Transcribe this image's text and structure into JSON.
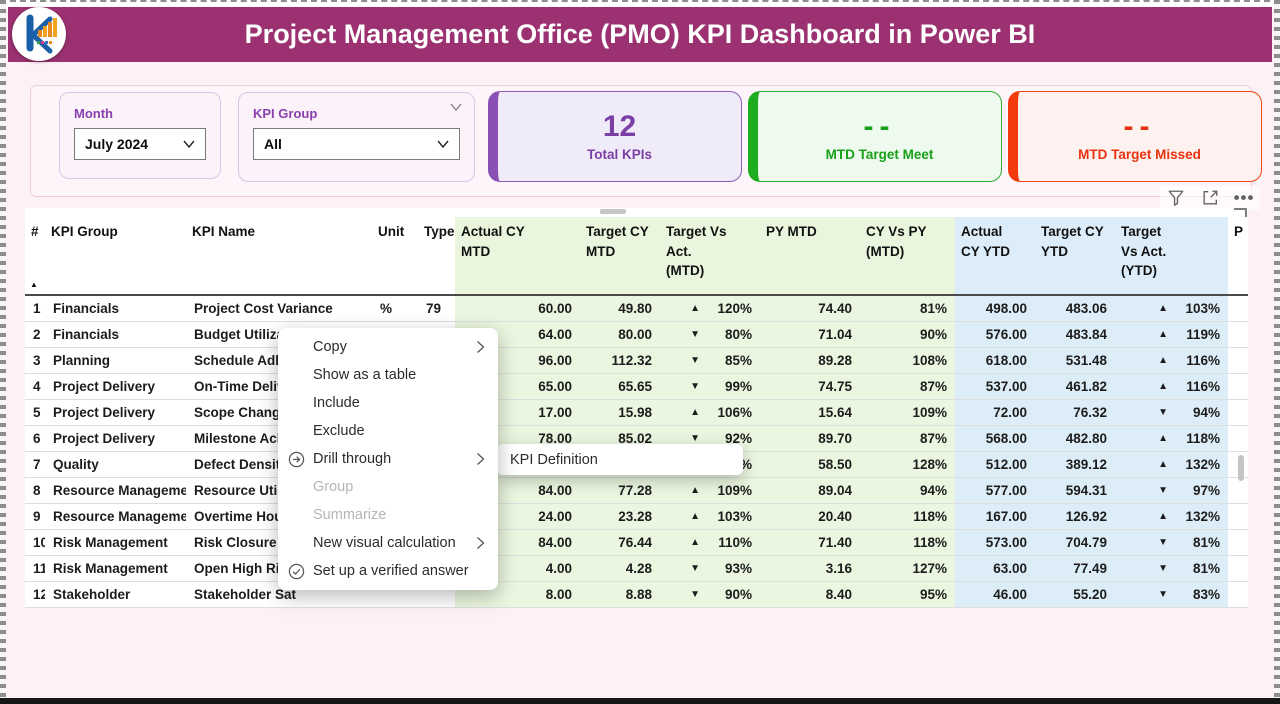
{
  "title": "Project Management Office (PMO) KPI Dashboard in Power BI",
  "filters": {
    "month": {
      "label": "Month",
      "value": "July 2024"
    },
    "kpi_group": {
      "label": "KPI Group",
      "value": "All"
    }
  },
  "cards": {
    "total": {
      "value": "12",
      "label": "Total KPIs"
    },
    "meet": {
      "value": "--",
      "label": "MTD Target Meet"
    },
    "missed": {
      "value": "--",
      "label": "MTD Target Missed"
    }
  },
  "visual_header": {
    "icons": [
      "filter-icon",
      "focus-mode-icon",
      "more-options-icon"
    ]
  },
  "table": {
    "sort_indicator": "▲",
    "headers": [
      "#",
      "KPI Group",
      "KPI Name",
      "Unit",
      "Type",
      "Actual CY\nMTD",
      "Target CY\nMTD",
      "Target Vs\nAct.\n(MTD)",
      "PY MTD",
      "CY Vs PY\n(MTD)",
      "Actual\nCY YTD",
      "Target CY\nYTD",
      "Target\nVs Act.\n(YTD)",
      "P"
    ],
    "rows": [
      {
        "num": "1",
        "group": "Financials",
        "name": "Project Cost Variance",
        "unit": "%",
        "type": "79",
        "actual_mtd": "60.00",
        "target_mtd": "49.80",
        "tva_mtd_dir": "▲",
        "tva_mtd": "120%",
        "py_mtd": "74.40",
        "cy_py_mtd": "81%",
        "actual_ytd": "498.00",
        "target_ytd": "483.06",
        "tva_ytd_dir": "▲",
        "tva_ytd": "103%"
      },
      {
        "num": "2",
        "group": "Financials",
        "name": "Budget Utilizati",
        "unit": "",
        "type": "",
        "actual_mtd": "64.00",
        "target_mtd": "80.00",
        "tva_mtd_dir": "▼",
        "tva_mtd": "80%",
        "py_mtd": "71.04",
        "cy_py_mtd": "90%",
        "actual_ytd": "576.00",
        "target_ytd": "483.84",
        "tva_ytd_dir": "▲",
        "tva_ytd": "119%"
      },
      {
        "num": "3",
        "group": "Planning",
        "name": "Schedule Adher",
        "unit": "",
        "type": "",
        "actual_mtd": "96.00",
        "target_mtd": "112.32",
        "tva_mtd_dir": "▼",
        "tva_mtd": "85%",
        "py_mtd": "89.28",
        "cy_py_mtd": "108%",
        "actual_ytd": "618.00",
        "target_ytd": "531.48",
        "tva_ytd_dir": "▲",
        "tva_ytd": "116%"
      },
      {
        "num": "4",
        "group": "Project Delivery",
        "name": "On-Time Delive",
        "unit": "",
        "type": "",
        "actual_mtd": "65.00",
        "target_mtd": "65.65",
        "tva_mtd_dir": "▼",
        "tva_mtd": "99%",
        "py_mtd": "74.75",
        "cy_py_mtd": "87%",
        "actual_ytd": "537.00",
        "target_ytd": "461.82",
        "tva_ytd_dir": "▲",
        "tva_ytd": "116%"
      },
      {
        "num": "5",
        "group": "Project Delivery",
        "name": "Scope Change R",
        "unit": "",
        "type": "",
        "actual_mtd": "17.00",
        "target_mtd": "15.98",
        "tva_mtd_dir": "▲",
        "tva_mtd": "106%",
        "py_mtd": "15.64",
        "cy_py_mtd": "109%",
        "actual_ytd": "72.00",
        "target_ytd": "76.32",
        "tva_ytd_dir": "▼",
        "tva_ytd": "94%"
      },
      {
        "num": "6",
        "group": "Project Delivery",
        "name": "Milestone Achie",
        "unit": "",
        "type": "",
        "actual_mtd": "78.00",
        "target_mtd": "85.02",
        "tva_mtd_dir": "▼",
        "tva_mtd": "92%",
        "py_mtd": "89.70",
        "cy_py_mtd": "87%",
        "actual_ytd": "568.00",
        "target_ytd": "482.80",
        "tva_ytd_dir": "▲",
        "tva_ytd": "118%"
      },
      {
        "num": "7",
        "group": "Quality",
        "name": "Defect Density",
        "unit": "",
        "type": "",
        "actual_mtd": "",
        "target_mtd": "",
        "tva_mtd_dir": "▼",
        "tva_mtd": "83%",
        "py_mtd": "58.50",
        "cy_py_mtd": "128%",
        "actual_ytd": "512.00",
        "target_ytd": "389.12",
        "tva_ytd_dir": "▲",
        "tva_ytd": "132%"
      },
      {
        "num": "8",
        "group": "Resource Management",
        "name": "Resource Utiliza",
        "unit": "",
        "type": "",
        "actual_mtd": "84.00",
        "target_mtd": "77.28",
        "tva_mtd_dir": "▲",
        "tva_mtd": "109%",
        "py_mtd": "89.04",
        "cy_py_mtd": "94%",
        "actual_ytd": "577.00",
        "target_ytd": "594.31",
        "tva_ytd_dir": "▼",
        "tva_ytd": "97%"
      },
      {
        "num": "9",
        "group": "Resource Management",
        "name": "Overtime Hours",
        "unit": "",
        "type": "",
        "actual_mtd": "24.00",
        "target_mtd": "23.28",
        "tva_mtd_dir": "▲",
        "tva_mtd": "103%",
        "py_mtd": "20.40",
        "cy_py_mtd": "118%",
        "actual_ytd": "167.00",
        "target_ytd": "126.92",
        "tva_ytd_dir": "▲",
        "tva_ytd": "132%"
      },
      {
        "num": "10",
        "group": "Risk Management",
        "name": "Risk Closure Ra",
        "unit": "",
        "type": "",
        "actual_mtd": "84.00",
        "target_mtd": "76.44",
        "tva_mtd_dir": "▲",
        "tva_mtd": "110%",
        "py_mtd": "71.40",
        "cy_py_mtd": "118%",
        "actual_ytd": "573.00",
        "target_ytd": "704.79",
        "tva_ytd_dir": "▼",
        "tva_ytd": "81%"
      },
      {
        "num": "11",
        "group": "Risk Management",
        "name": "Open High Risk",
        "unit": "",
        "type": "",
        "actual_mtd": "4.00",
        "target_mtd": "4.28",
        "tva_mtd_dir": "▼",
        "tva_mtd": "93%",
        "py_mtd": "3.16",
        "cy_py_mtd": "127%",
        "actual_ytd": "63.00",
        "target_ytd": "77.49",
        "tva_ytd_dir": "▼",
        "tva_ytd": "81%"
      },
      {
        "num": "12",
        "group": "Stakeholder",
        "name": "Stakeholder Sat",
        "unit": "",
        "type": "",
        "actual_mtd": "8.00",
        "target_mtd": "8.88",
        "tva_mtd_dir": "▼",
        "tva_mtd": "90%",
        "py_mtd": "8.40",
        "cy_py_mtd": "95%",
        "actual_ytd": "46.00",
        "target_ytd": "55.20",
        "tva_ytd_dir": "▼",
        "tva_ytd": "83%"
      }
    ]
  },
  "context_menu": {
    "items": [
      {
        "label": "Copy",
        "chevron": true
      },
      {
        "label": "Show as a table"
      },
      {
        "label": "Include"
      },
      {
        "label": "Exclude"
      },
      {
        "label": "Drill through",
        "icon": "drill-through",
        "chevron": true
      },
      {
        "label": "Group",
        "disabled": true
      },
      {
        "label": "Summarize",
        "disabled": true
      },
      {
        "label": "New visual calculation",
        "chevron": true
      },
      {
        "label": "Set up a verified answer",
        "icon": "verified-answer"
      }
    ]
  },
  "drill_submenu": {
    "items": [
      {
        "label": "KPI Definition"
      }
    ]
  },
  "colors": {
    "titlebar": "#9b3170",
    "purple_accent": "#8a50b5",
    "green_accent": "#1ead1e",
    "red_accent": "#f23a0d",
    "mtd_zone": "#eaf6df",
    "ytd_zone": "#ddedf8",
    "canvas": "#fdf1f6"
  }
}
